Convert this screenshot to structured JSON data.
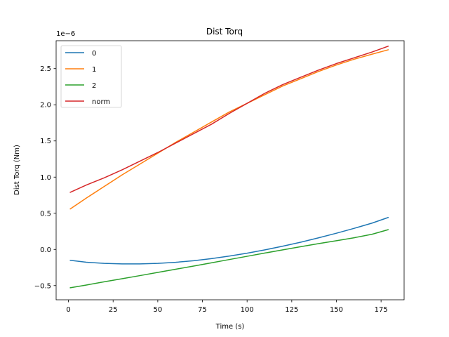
{
  "chart_data": {
    "type": "line",
    "title": "Dist Torq",
    "xlabel": "Time (s)",
    "ylabel": "Dist Torq (Nm)",
    "y_offset_label": "1e−6",
    "xlim": [
      -6.9,
      187.9
    ],
    "ylim": [
      -0.6963,
      2.8857
    ],
    "y_scale_note": "values in units of 1e-6 Nm",
    "xticks": [
      0,
      25,
      50,
      75,
      100,
      125,
      150,
      175
    ],
    "xtick_labels": [
      "0",
      "25",
      "50",
      "75",
      "100",
      "125",
      "150",
      "175"
    ],
    "yticks": [
      -0.5,
      0.0,
      0.5,
      1.0,
      1.5,
      2.0,
      2.5
    ],
    "ytick_labels": [
      "−0.5",
      "0.0",
      "0.5",
      "1.0",
      "1.5",
      "2.0",
      "2.5"
    ],
    "legend_position": "top-left",
    "grid": false,
    "x": [
      1,
      10,
      20,
      30,
      40,
      50,
      60,
      70,
      80,
      90,
      100,
      110,
      120,
      130,
      140,
      150,
      160,
      170,
      179
    ],
    "series": [
      {
        "name": "0",
        "color": "#1f77b4",
        "values": [
          -0.15,
          -0.177,
          -0.193,
          -0.2,
          -0.2,
          -0.193,
          -0.178,
          -0.156,
          -0.127,
          -0.092,
          -0.052,
          -0.006,
          0.045,
          0.1,
          0.16,
          0.224,
          0.292,
          0.364,
          0.442
        ]
      },
      {
        "name": "1",
        "color": "#ff7f0e",
        "values": [
          0.56,
          0.71,
          0.87,
          1.03,
          1.18,
          1.33,
          1.48,
          1.62,
          1.76,
          1.9,
          2.02,
          2.14,
          2.26,
          2.36,
          2.46,
          2.55,
          2.63,
          2.7,
          2.76
        ]
      },
      {
        "name": "2",
        "color": "#2ca02c",
        "values": [
          -0.53,
          -0.492,
          -0.448,
          -0.405,
          -0.362,
          -0.318,
          -0.274,
          -0.23,
          -0.185,
          -0.14,
          -0.095,
          -0.05,
          -0.006,
          0.038,
          0.08,
          0.12,
          0.162,
          0.21,
          0.273
        ]
      },
      {
        "name": "norm",
        "color": "#d62728",
        "values": [
          0.79,
          0.89,
          0.99,
          1.1,
          1.22,
          1.34,
          1.47,
          1.6,
          1.73,
          1.88,
          2.02,
          2.16,
          2.28,
          2.38,
          2.48,
          2.57,
          2.65,
          2.73,
          2.81
        ]
      }
    ]
  }
}
